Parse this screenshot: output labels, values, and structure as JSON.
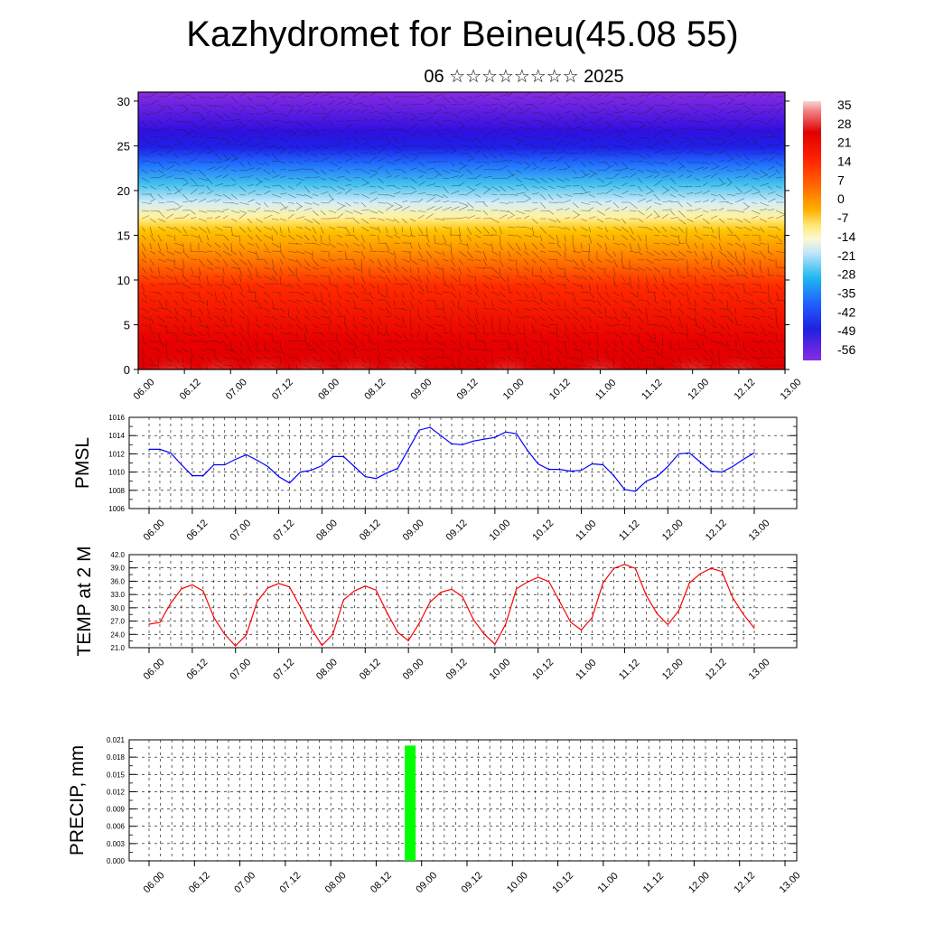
{
  "header": {
    "title": "Kazhydromet for Beineu(45.08 55)",
    "subtitle": "06 ☆☆☆☆☆☆☆☆ 2025"
  },
  "chart_data": [
    {
      "type": "heatmap",
      "name": "cross-section",
      "x_ticks": [
        "06.00",
        "06.12",
        "07.00",
        "07.12",
        "08.00",
        "08.12",
        "09.00",
        "09.12",
        "10.00",
        "10.12",
        "11.00",
        "11.12",
        "12.00",
        "12.12",
        "13.00"
      ],
      "y_ticks": [
        "0",
        "5",
        "10",
        "15",
        "20",
        "25",
        "30"
      ],
      "ylim": [
        0,
        31
      ],
      "colorbar_labels": [
        "35",
        "28",
        "21",
        "14",
        "7",
        "0",
        "-7",
        "-14",
        "-21",
        "-28",
        "-35",
        "-42",
        "-49",
        "-56"
      ],
      "colorbar_range": [
        35,
        -60
      ]
    },
    {
      "type": "line",
      "ylabel": "PMSL",
      "ylim": [
        1006,
        1016
      ],
      "y_ticks": [
        "1006",
        "1008",
        "1010",
        "1012",
        "1014",
        "1016"
      ],
      "x_ticks": [
        "06.00",
        "06.12",
        "07.00",
        "07.12",
        "08.00",
        "08.12",
        "09.00",
        "09.12",
        "10.00",
        "10.12",
        "11.00",
        "11.12",
        "12.00",
        "12.12",
        "13.00"
      ],
      "color": "#0000ff",
      "values": [
        1012.5,
        1012.5,
        1012.1,
        1010.8,
        1009.6,
        1009.6,
        1010.8,
        1010.8,
        1011.4,
        1011.9,
        1011.3,
        1010.6,
        1009.5,
        1008.8,
        1010.0,
        1010.2,
        1010.7,
        1011.7,
        1011.7,
        1010.6,
        1009.5,
        1009.3,
        1009.9,
        1010.4,
        1012.5,
        1014.6,
        1014.9,
        1014.0,
        1013.1,
        1013.0,
        1013.4,
        1013.6,
        1013.8,
        1014.4,
        1014.2,
        1012.4,
        1010.9,
        1010.3,
        1010.3,
        1010.1,
        1010.2,
        1010.9,
        1010.8,
        1009.6,
        1008.1,
        1007.9,
        1009.0,
        1009.5,
        1010.6,
        1012.0,
        1012.1,
        1011.1,
        1010.1,
        1010.0,
        1010.6,
        1011.4,
        1012.1
      ]
    },
    {
      "type": "line",
      "ylabel": "TEMP at 2 M",
      "ylim": [
        21.0,
        42.0
      ],
      "y_ticks": [
        "21.0",
        "24.0",
        "27.0",
        "30.0",
        "33.0",
        "36.0",
        "39.0",
        "42.0"
      ],
      "x_ticks": [
        "06.00",
        "06.12",
        "07.00",
        "07.12",
        "08.00",
        "08.12",
        "09.00",
        "09.12",
        "10.00",
        "10.12",
        "11.00",
        "11.12",
        "12.00",
        "12.12",
        "13.00"
      ],
      "color": "#ff0000",
      "values": [
        26.3,
        26.7,
        31.0,
        34.3,
        35.2,
        33.8,
        27.8,
        24.0,
        21.4,
        23.9,
        31.4,
        34.5,
        35.5,
        34.7,
        30.2,
        25.4,
        21.5,
        24.0,
        31.8,
        33.8,
        34.9,
        34.0,
        29.0,
        24.5,
        22.6,
        26.5,
        31.3,
        33.5,
        34.2,
        32.5,
        27.4,
        24.1,
        21.8,
        26.3,
        34.3,
        35.8,
        36.9,
        35.9,
        31.4,
        26.8,
        25.0,
        27.8,
        35.6,
        38.9,
        39.8,
        38.9,
        32.8,
        28.7,
        26.2,
        29.3,
        35.6,
        37.7,
        38.9,
        38.2,
        32.3,
        28.5,
        25.4
      ]
    },
    {
      "type": "bar",
      "ylabel": "PRECIP, mm",
      "ylim": [
        0,
        0.021
      ],
      "y_ticks": [
        "0.000",
        "0.003",
        "0.006",
        "0.009",
        "0.012",
        "0.015",
        "0.018",
        "0.021"
      ],
      "x_ticks": [
        "06.00",
        "06.12",
        "07.00",
        "07.12",
        "08.00",
        "08.12",
        "09.00",
        "09.12",
        "10.00",
        "10.12",
        "11.00",
        "11.12",
        "12.00",
        "12.12",
        "13.00"
      ],
      "color": "#00ff00",
      "bars": [
        {
          "x_index": 5.75,
          "value": 0.02
        }
      ]
    }
  ]
}
